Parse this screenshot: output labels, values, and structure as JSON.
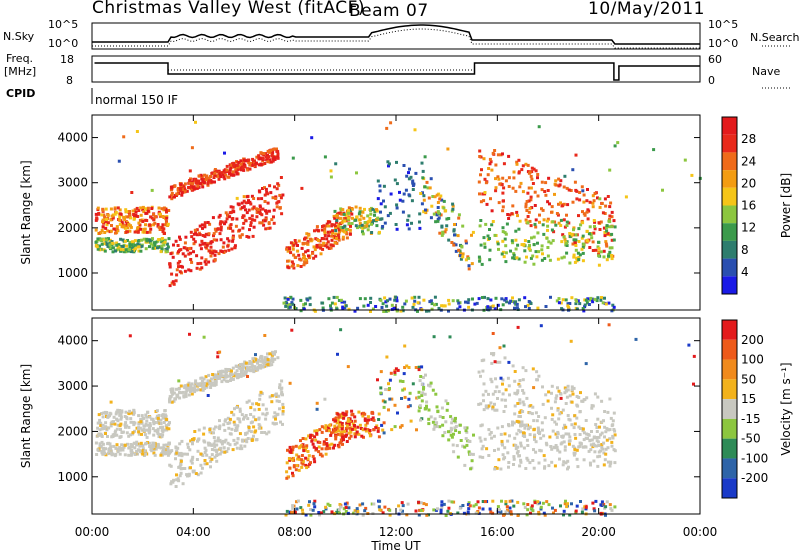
{
  "header": {
    "station": "Christmas Valley West (fitACF)",
    "beam": "Beam 07",
    "date": "10/May/2011"
  },
  "side_labels": {
    "nsky": "N.Sky",
    "nsearch": "N.Search",
    "freq": "Freq.",
    "freq_unit": "[MHz]",
    "nave": "Nave",
    "cpid": "CPID",
    "cpid_value": "normal 150 IF"
  },
  "noise_panel": {
    "left_ticks": [
      "10^5",
      "10^0"
    ],
    "right_ticks": [
      "10^5",
      "10^0"
    ]
  },
  "freq_panel": {
    "left_ticks": [
      "18",
      "8"
    ],
    "right_ticks": [
      "60",
      "0"
    ]
  },
  "chart_data": [
    {
      "type": "heatmap",
      "name": "power",
      "ylabel": "Slant Range [km]",
      "ylim": [
        180,
        4500
      ],
      "yticks": [
        "1000",
        "2000",
        "3000",
        "4000"
      ],
      "xlabel": "Time UT",
      "xticks": [
        "00:00",
        "04:00",
        "08:00",
        "12:00",
        "16:00",
        "20:00",
        "00:00"
      ],
      "colorbar": {
        "label": "Power [dB]",
        "ticks": [
          "4",
          "8",
          "12",
          "16",
          "20",
          "24",
          "28"
        ],
        "colors": [
          "#1a1ae6",
          "#2a4fb0",
          "#2e7d6e",
          "#3b9a4b",
          "#8cc63f",
          "#f5c518",
          "#f39c12",
          "#ef6b1a",
          "#e8291b",
          "#e31a1c"
        ]
      }
    },
    {
      "type": "heatmap",
      "name": "velocity",
      "ylabel": "Slant Range [km]",
      "ylim": [
        180,
        4500
      ],
      "yticks": [
        "1000",
        "2000",
        "3000",
        "4000"
      ],
      "xlabel": "Time UT",
      "xticks": [
        "00:00",
        "04:00",
        "08:00",
        "12:00",
        "16:00",
        "20:00",
        "00:00"
      ],
      "colorbar": {
        "label": "Velocity [m s⁻¹]",
        "ticks": [
          "200",
          "100",
          "50",
          "15",
          "-15",
          "-50",
          "-100",
          "-200"
        ],
        "colors": [
          "#1a3ac8",
          "#2e64a8",
          "#2e8b57",
          "#8cc63f",
          "#c8c8c0",
          "#f2b21c",
          "#f08a1c",
          "#ee5a1a",
          "#e31a1c"
        ]
      }
    }
  ]
}
